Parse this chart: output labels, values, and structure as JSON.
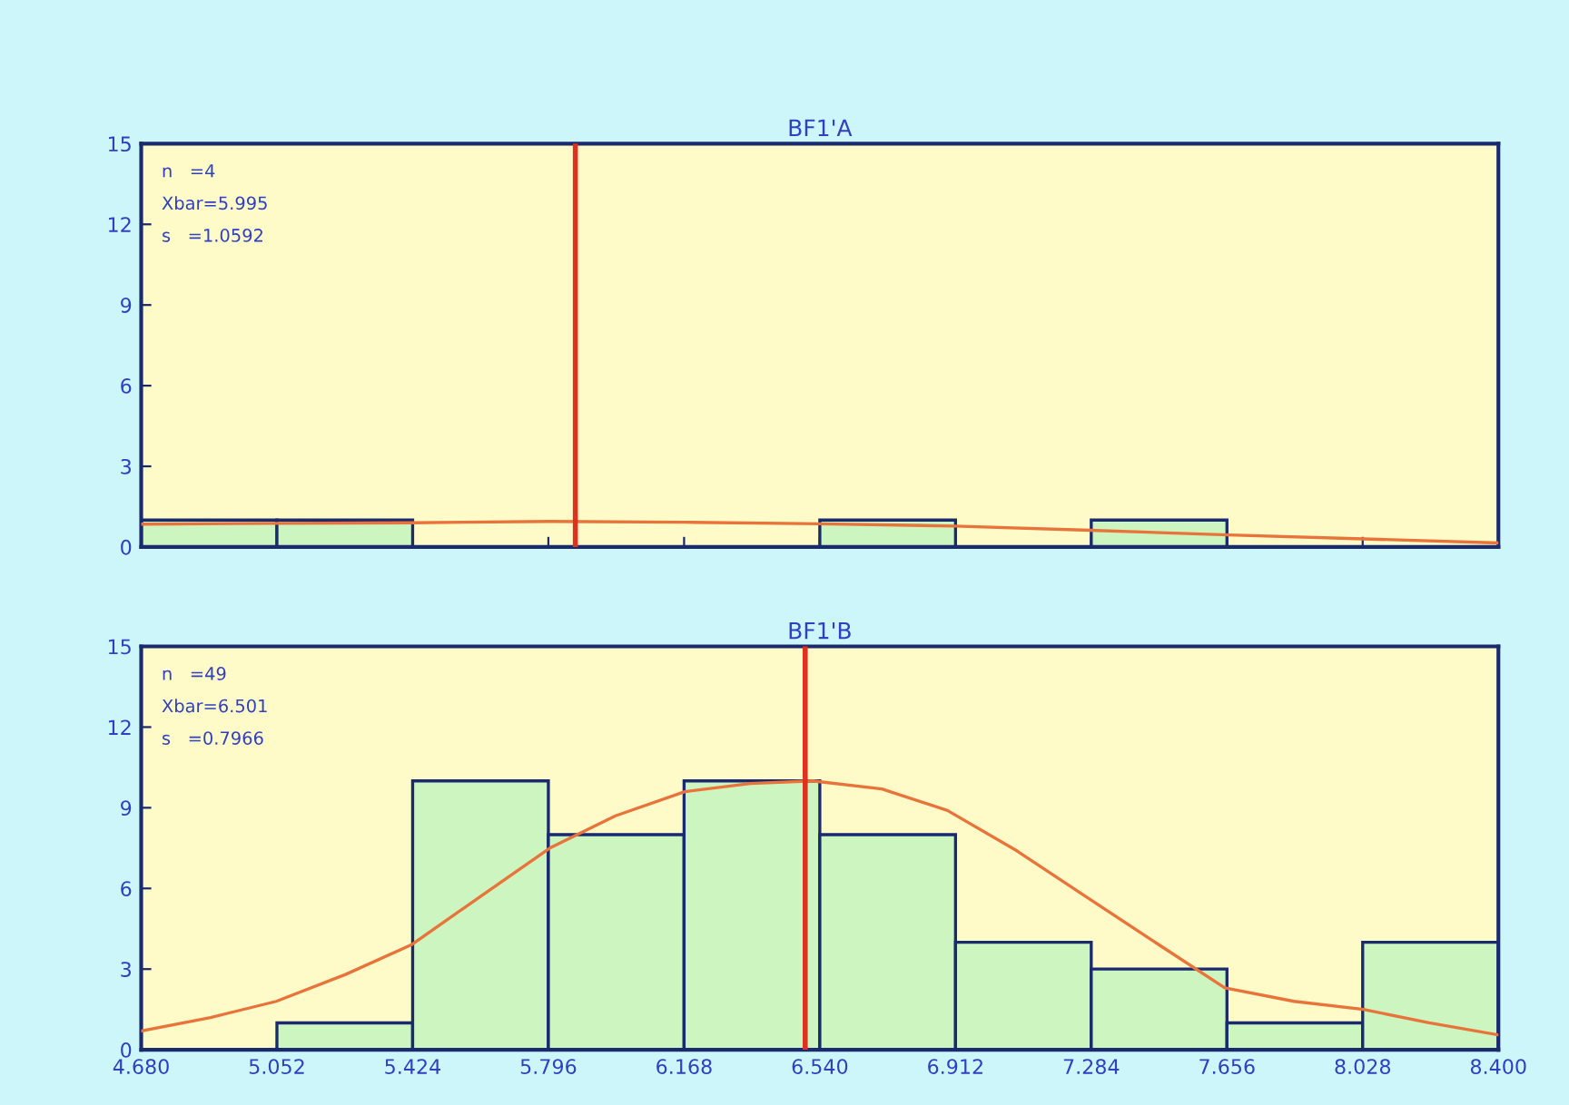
{
  "chart_data": [
    {
      "type": "histogram",
      "title": "BF1'A",
      "bins": [
        4.68,
        5.052,
        5.424,
        5.796,
        6.168,
        6.54,
        6.912,
        7.284,
        7.656,
        8.028,
        8.4
      ],
      "values": [
        1,
        1,
        0,
        0,
        0,
        1,
        0,
        1,
        0,
        0
      ],
      "color": "#ccf5c0",
      "series": [
        {
          "type": "line",
          "color": "#e8743b",
          "x": [
            4.68,
            5.05,
            5.42,
            5.8,
            6.17,
            6.54,
            6.91,
            7.28,
            7.66,
            8.03,
            8.4
          ],
          "values": [
            0.85,
            0.88,
            0.9,
            0.95,
            0.92,
            0.86,
            0.78,
            0.62,
            0.45,
            0.3,
            0.15
          ]
        }
      ],
      "ref_lines": [
        {
          "axis": "x",
          "value": 5.87,
          "color": "#e03020"
        }
      ],
      "annotations": [
        "n   =4",
        "Xbar=5.995",
        "s   =1.0592"
      ],
      "xlim": [
        4.68,
        8.4
      ],
      "xticks": [
        {
          "value": 4.68,
          "label": null
        },
        {
          "value": 5.052,
          "label": null
        },
        {
          "value": 5.424,
          "label": null
        },
        {
          "value": 5.796,
          "label": null
        },
        {
          "value": 6.168,
          "label": null
        },
        {
          "value": 6.54,
          "label": null
        },
        {
          "value": 6.912,
          "label": null
        },
        {
          "value": 7.284,
          "label": null
        },
        {
          "value": 7.656,
          "label": null
        },
        {
          "value": 8.028,
          "label": null
        },
        {
          "value": 8.4,
          "label": null
        }
      ],
      "ylim": [
        0,
        15
      ],
      "yticks": [
        0,
        3,
        6,
        9,
        12,
        15
      ],
      "tick_labels": "y"
    },
    {
      "type": "histogram",
      "title": "BF1'B",
      "bins": [
        4.68,
        5.052,
        5.424,
        5.796,
        6.168,
        6.54,
        6.912,
        7.284,
        7.656,
        8.028,
        8.4
      ],
      "values": [
        0,
        1,
        10,
        8,
        10,
        8,
        4,
        3,
        1,
        4
      ],
      "color": "#ccf5c0",
      "series": [
        {
          "type": "line",
          "color": "#e8743b",
          "x": [
            4.68,
            4.87,
            5.05,
            5.24,
            5.42,
            5.61,
            5.8,
            5.98,
            6.17,
            6.35,
            6.52,
            6.71,
            6.89,
            7.08,
            7.28,
            7.47,
            7.65,
            7.84,
            8.03,
            8.21,
            8.4
          ],
          "values": [
            0.7,
            1.2,
            1.8,
            2.8,
            3.9,
            5.7,
            7.5,
            8.7,
            9.6,
            9.9,
            10,
            9.7,
            8.9,
            7.4,
            5.6,
            3.9,
            2.3,
            1.8,
            1.5,
            1,
            0.55
          ]
        }
      ],
      "ref_lines": [
        {
          "axis": "x",
          "value": 6.5,
          "color": "#e03020"
        }
      ],
      "annotations": [
        "n   =49",
        "Xbar=6.501",
        "s   =0.7966"
      ],
      "xlim": [
        4.68,
        8.4
      ],
      "xticks": [
        {
          "value": 4.68,
          "label": "4.680"
        },
        {
          "value": 5.052,
          "label": "5.052"
        },
        {
          "value": 5.424,
          "label": "5.424"
        },
        {
          "value": 5.796,
          "label": "5.796"
        },
        {
          "value": 6.168,
          "label": "6.168"
        },
        {
          "value": 6.54,
          "label": "6.540"
        },
        {
          "value": 6.912,
          "label": "6.912"
        },
        {
          "value": 7.284,
          "label": "7.284"
        },
        {
          "value": 7.656,
          "label": "7.656"
        },
        {
          "value": 8.028,
          "label": "8.028"
        },
        {
          "value": 8.4,
          "label": "8.400"
        }
      ],
      "ylim": [
        0,
        15
      ],
      "yticks": [
        0,
        3,
        6,
        9,
        12,
        15
      ]
    }
  ]
}
